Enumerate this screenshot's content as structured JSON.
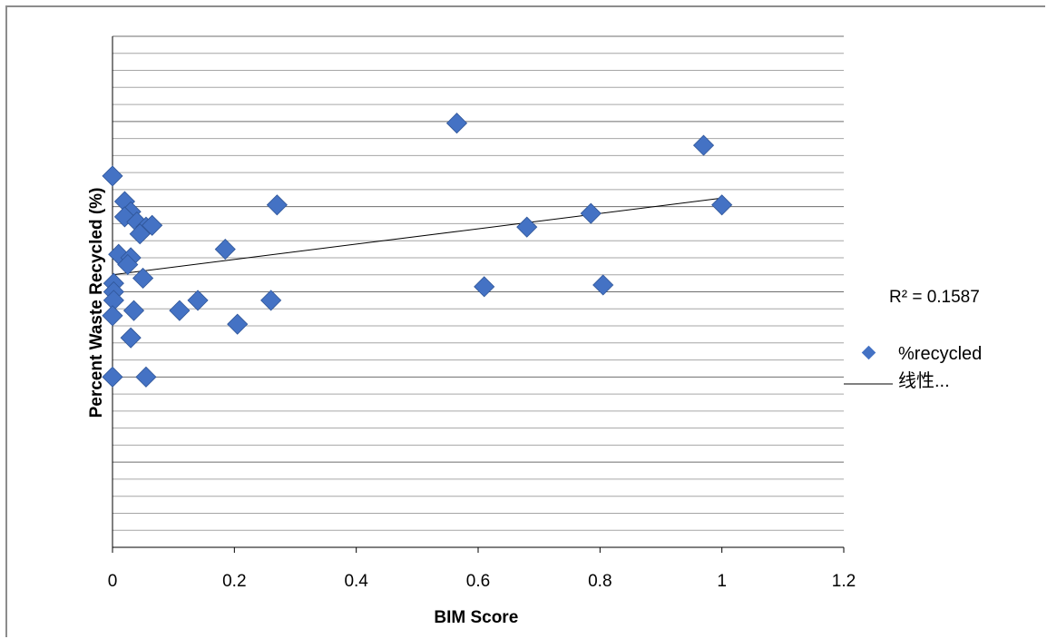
{
  "chart_data": {
    "type": "scatter",
    "xlabel": "BIM Score",
    "ylabel": "Percent Waste Recycled (%)",
    "xlim": [
      0,
      1.2
    ],
    "x_ticks": [
      "0",
      "0.2",
      "0.4",
      "0.6",
      "0.8",
      "1",
      "1.2"
    ],
    "x_tick_values": [
      0,
      0.2,
      0.4,
      0.6,
      0.8,
      1,
      1.2
    ],
    "ylim": [
      0,
      30
    ],
    "grid": true,
    "series": [
      {
        "name": "%recycled",
        "color": "#4472C4",
        "points": [
          {
            "x": 0.0,
            "y": 21.8
          },
          {
            "x": 0.02,
            "y": 20.3
          },
          {
            "x": 0.03,
            "y": 19.7
          },
          {
            "x": 0.02,
            "y": 19.4
          },
          {
            "x": 0.04,
            "y": 19.1
          },
          {
            "x": 0.055,
            "y": 18.8
          },
          {
            "x": 0.065,
            "y": 18.9
          },
          {
            "x": 0.045,
            "y": 18.4
          },
          {
            "x": 0.01,
            "y": 17.2
          },
          {
            "x": 0.03,
            "y": 17.0
          },
          {
            "x": 0.025,
            "y": 16.6
          },
          {
            "x": 0.05,
            "y": 15.8
          },
          {
            "x": 0.002,
            "y": 15.5
          },
          {
            "x": 0.002,
            "y": 15.0
          },
          {
            "x": 0.002,
            "y": 14.5
          },
          {
            "x": 0.0,
            "y": 13.6
          },
          {
            "x": 0.035,
            "y": 13.9
          },
          {
            "x": 0.03,
            "y": 12.3
          },
          {
            "x": 0.0,
            "y": 10.0
          },
          {
            "x": 0.055,
            "y": 10.0
          },
          {
            "x": 0.11,
            "y": 13.9
          },
          {
            "x": 0.14,
            "y": 14.5
          },
          {
            "x": 0.185,
            "y": 17.5
          },
          {
            "x": 0.205,
            "y": 13.1
          },
          {
            "x": 0.26,
            "y": 14.5
          },
          {
            "x": 0.27,
            "y": 20.1
          },
          {
            "x": 0.565,
            "y": 24.9
          },
          {
            "x": 0.61,
            "y": 15.3
          },
          {
            "x": 0.68,
            "y": 18.8
          },
          {
            "x": 0.785,
            "y": 19.6
          },
          {
            "x": 0.805,
            "y": 15.4
          },
          {
            "x": 0.97,
            "y": 23.6
          },
          {
            "x": 1.0,
            "y": 20.1
          }
        ]
      }
    ],
    "trendline": {
      "name": "线性...",
      "x": [
        0,
        1.0
      ],
      "y": [
        16.0,
        20.5
      ]
    },
    "r_squared_label": "R² = 0.1587",
    "legend_position": "right"
  }
}
